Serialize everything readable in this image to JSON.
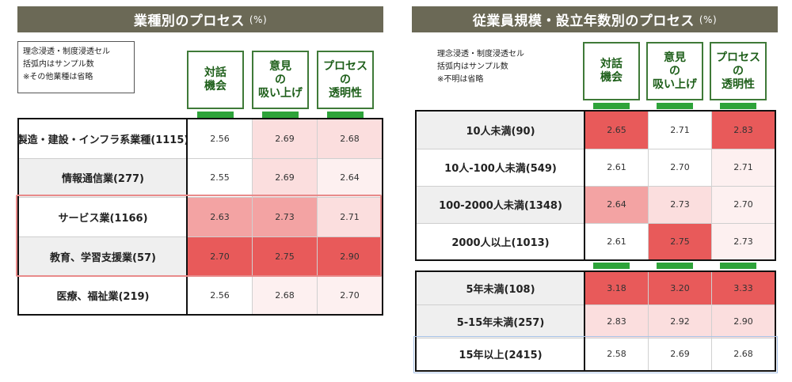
{
  "left": {
    "title": "業種別のプロセス",
    "unit": "(%)",
    "notes": [
      "理念浸透・制度浸透セル",
      "括弧内はサンプル数",
      "※その他業種は省略"
    ],
    "headers": [
      "対話\n機会",
      "意見\nの\n吸い上げ",
      "プロセス\nの\n透明性"
    ],
    "rows": [
      {
        "label": "製造・建設・インフラ系業種(1115)",
        "values": [
          "2.56",
          "2.69",
          "2.68"
        ]
      },
      {
        "label": "情報通信業(277)",
        "values": [
          "2.55",
          "2.69",
          "2.64"
        ]
      },
      {
        "label": "サービス業(1166)",
        "values": [
          "2.63",
          "2.73",
          "2.71"
        ]
      },
      {
        "label": "教育、学習支援業(57)",
        "values": [
          "2.70",
          "2.75",
          "2.90"
        ]
      },
      {
        "label": "医療、福祉業(219)",
        "values": [
          "2.56",
          "2.68",
          "2.70"
        ]
      }
    ]
  },
  "right": {
    "title": "従業員規模・設立年数別のプロセス",
    "unit": "(%)",
    "notes": [
      "理念浸透・制度浸透セル",
      "括弧内はサンプル数",
      "※不明は省略"
    ],
    "headers": [
      "対話\n機会",
      "意見\nの\n吸い上げ",
      "プロセス\nの\n透明性"
    ],
    "size_rows": [
      {
        "label": "10人未満(90)",
        "values": [
          "2.65",
          "2.71",
          "2.83"
        ]
      },
      {
        "label": "10人-100人未満(549)",
        "values": [
          "2.61",
          "2.70",
          "2.71"
        ]
      },
      {
        "label": "100-2000人未満(1348)",
        "values": [
          "2.64",
          "2.73",
          "2.70"
        ]
      },
      {
        "label": "2000人以上(1013)",
        "values": [
          "2.61",
          "2.75",
          "2.73"
        ]
      }
    ],
    "age_rows": [
      {
        "label": "5年未満(108)",
        "values": [
          "3.18",
          "3.20",
          "3.33"
        ]
      },
      {
        "label": "5-15年未満(257)",
        "values": [
          "2.83",
          "2.92",
          "2.90"
        ]
      },
      {
        "label": "15年以上(2415)",
        "values": [
          "2.58",
          "2.69",
          "2.68"
        ]
      }
    ]
  },
  "colors": {
    "title_bg": "#6b6956",
    "header_border": "#3f7a38",
    "tab_green": "#2ea33a",
    "heat_strong": "#e85a5a",
    "heat_mid": "#f3a3a3",
    "heat_light": "#fbdede",
    "heat_faint": "#fdf0f0",
    "heat_none": "#ffffff"
  },
  "cell_shades": {
    "left": [
      [
        "none",
        "light",
        "light"
      ],
      [
        "none",
        "light",
        "faint"
      ],
      [
        "mid",
        "mid",
        "light"
      ],
      [
        "strong",
        "strong",
        "strong"
      ],
      [
        "none",
        "faint",
        "faint"
      ]
    ],
    "right_size": [
      [
        "strong",
        "none",
        "strong"
      ],
      [
        "none",
        "none",
        "faint"
      ],
      [
        "mid",
        "light",
        "faint"
      ],
      [
        "none",
        "strong",
        "faint"
      ]
    ],
    "right_age": [
      [
        "strong",
        "strong",
        "strong"
      ],
      [
        "light",
        "light",
        "light"
      ],
      [
        "none",
        "none",
        "none"
      ]
    ]
  }
}
